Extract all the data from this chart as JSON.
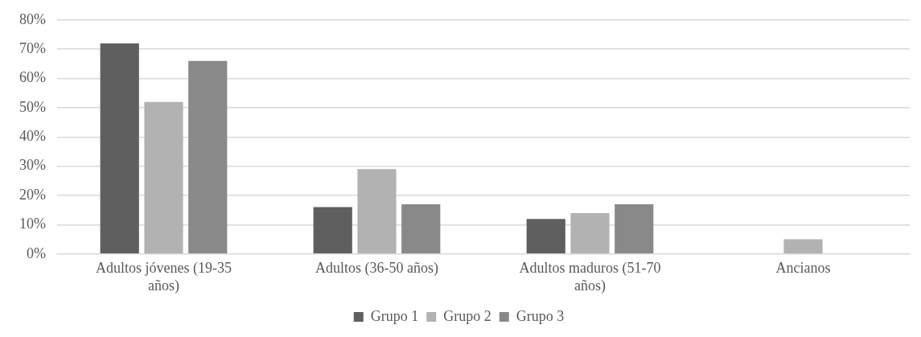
{
  "chart_data": {
    "type": "bar",
    "categories": [
      "Adultos jóvenes (19-35 años)",
      "Adultos (36-50 años)",
      "Adultos maduros (51-70 años)",
      "Ancianos"
    ],
    "series": [
      {
        "name": "Grupo 1",
        "color": "#5f5f5f",
        "values": [
          72,
          16,
          12,
          0
        ]
      },
      {
        "name": "Grupo 2",
        "color": "#b2b2b2",
        "values": [
          52,
          29,
          14,
          5
        ]
      },
      {
        "name": "Grupo 3",
        "color": "#898989",
        "values": [
          66,
          17,
          17,
          0
        ]
      }
    ],
    "ylim": [
      0,
      80
    ],
    "yticks": [
      {
        "value": 0,
        "label": "0%"
      },
      {
        "value": 10,
        "label": "10%"
      },
      {
        "value": 20,
        "label": "20%"
      },
      {
        "value": 30,
        "label": "30%"
      },
      {
        "value": 40,
        "label": "40%"
      },
      {
        "value": 50,
        "label": "50%"
      },
      {
        "value": 60,
        "label": "60%"
      },
      {
        "value": 70,
        "label": "70%"
      },
      {
        "value": 80,
        "label": "80%"
      }
    ],
    "grid": "y",
    "legend": "bottom"
  }
}
